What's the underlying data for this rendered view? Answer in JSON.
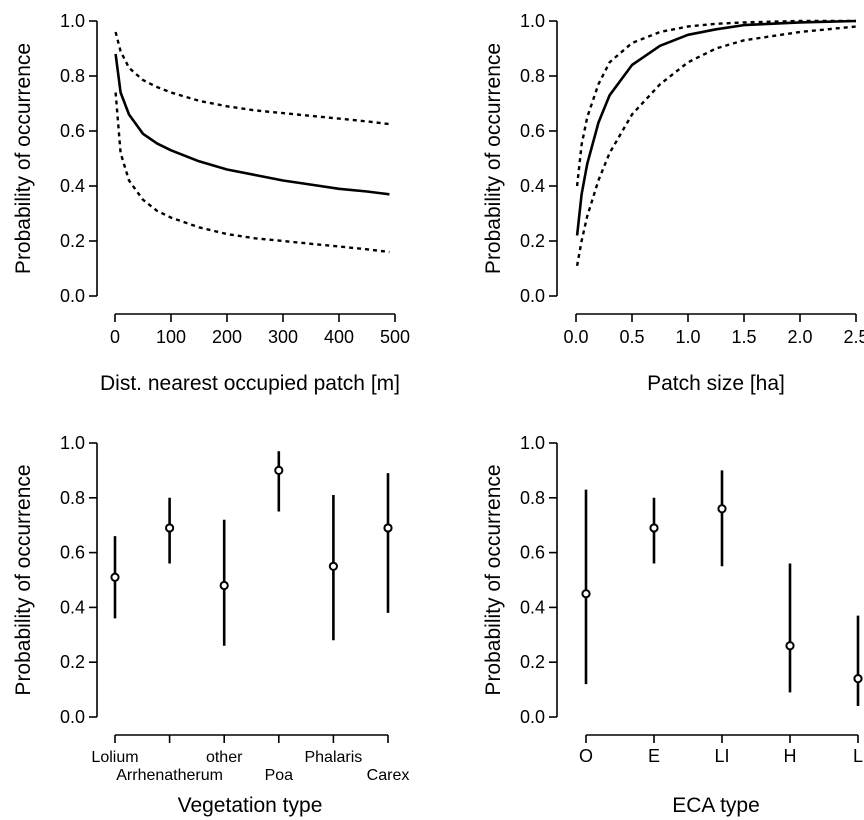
{
  "chart_data": [
    {
      "type": "line",
      "xlabel": "Dist. nearest occupied patch [m]",
      "ylabel": "Probability of occurrence",
      "xlim": [
        0,
        500
      ],
      "ylim": [
        0,
        1
      ],
      "xticks": [
        "0",
        "100",
        "200",
        "300",
        "400",
        "500"
      ],
      "yticks": [
        "0.0",
        "0.2",
        "0.4",
        "0.6",
        "0.8",
        "1.0"
      ],
      "x": [
        1,
        10,
        25,
        50,
        75,
        100,
        150,
        200,
        250,
        300,
        350,
        400,
        450,
        490
      ],
      "series": [
        {
          "style": "solid",
          "values": [
            0.88,
            0.74,
            0.66,
            0.59,
            0.555,
            0.53,
            0.49,
            0.46,
            0.44,
            0.42,
            0.405,
            0.39,
            0.38,
            0.37
          ]
        },
        {
          "style": "dotted",
          "values": [
            0.96,
            0.89,
            0.83,
            0.785,
            0.76,
            0.74,
            0.71,
            0.69,
            0.675,
            0.665,
            0.655,
            0.645,
            0.635,
            0.625
          ]
        },
        {
          "style": "dotted",
          "values": [
            0.74,
            0.52,
            0.42,
            0.35,
            0.31,
            0.285,
            0.25,
            0.225,
            0.21,
            0.2,
            0.19,
            0.18,
            0.17,
            0.16
          ]
        }
      ]
    },
    {
      "type": "line",
      "xlabel": "Patch size [ha]",
      "ylabel": "Probability of occurrence",
      "xlim": [
        0,
        2.5
      ],
      "ylim": [
        0,
        1
      ],
      "xticks": [
        "0.0",
        "0.5",
        "1.0",
        "1.5",
        "2.0",
        "2.5"
      ],
      "yticks": [
        "0.0",
        "0.2",
        "0.4",
        "0.6",
        "0.8",
        "1.0"
      ],
      "x": [
        0.01,
        0.05,
        0.1,
        0.2,
        0.3,
        0.5,
        0.75,
        1.0,
        1.25,
        1.5,
        2.0,
        2.5
      ],
      "series": [
        {
          "style": "solid",
          "values": [
            0.22,
            0.37,
            0.48,
            0.63,
            0.73,
            0.84,
            0.91,
            0.95,
            0.97,
            0.985,
            0.995,
            1.0
          ]
        },
        {
          "style": "dotted",
          "values": [
            0.4,
            0.55,
            0.65,
            0.77,
            0.85,
            0.92,
            0.96,
            0.98,
            0.99,
            0.995,
            1.0,
            1.0
          ]
        },
        {
          "style": "dotted",
          "values": [
            0.11,
            0.2,
            0.29,
            0.42,
            0.52,
            0.66,
            0.77,
            0.85,
            0.9,
            0.93,
            0.96,
            0.98
          ]
        }
      ]
    },
    {
      "type": "scatter",
      "xlabel": "Vegetation type",
      "ylabel": "Probability of occurrence",
      "ylim": [
        0,
        1
      ],
      "yticks": [
        "0.0",
        "0.2",
        "0.4",
        "0.6",
        "0.8",
        "1.0"
      ],
      "categories": [
        "Lolium",
        "Arrhenatherum",
        "other",
        "Poa",
        "Phalaris",
        "Carex"
      ],
      "values": [
        0.51,
        0.69,
        0.48,
        0.9,
        0.55,
        0.69
      ],
      "lower": [
        0.36,
        0.56,
        0.26,
        0.75,
        0.28,
        0.38
      ],
      "upper": [
        0.66,
        0.8,
        0.72,
        0.97,
        0.81,
        0.89
      ]
    },
    {
      "type": "scatter",
      "xlabel": "ECA type",
      "ylabel": "Probability of occurrence",
      "ylim": [
        0,
        1
      ],
      "yticks": [
        "0.0",
        "0.2",
        "0.4",
        "0.6",
        "0.8",
        "1.0"
      ],
      "categories": [
        "O",
        "E",
        "LI",
        "H",
        "L"
      ],
      "values": [
        0.45,
        0.69,
        0.76,
        0.26,
        0.14
      ],
      "lower": [
        0.12,
        0.56,
        0.55,
        0.09,
        0.04
      ],
      "upper": [
        0.83,
        0.8,
        0.9,
        0.56,
        0.37
      ]
    }
  ]
}
